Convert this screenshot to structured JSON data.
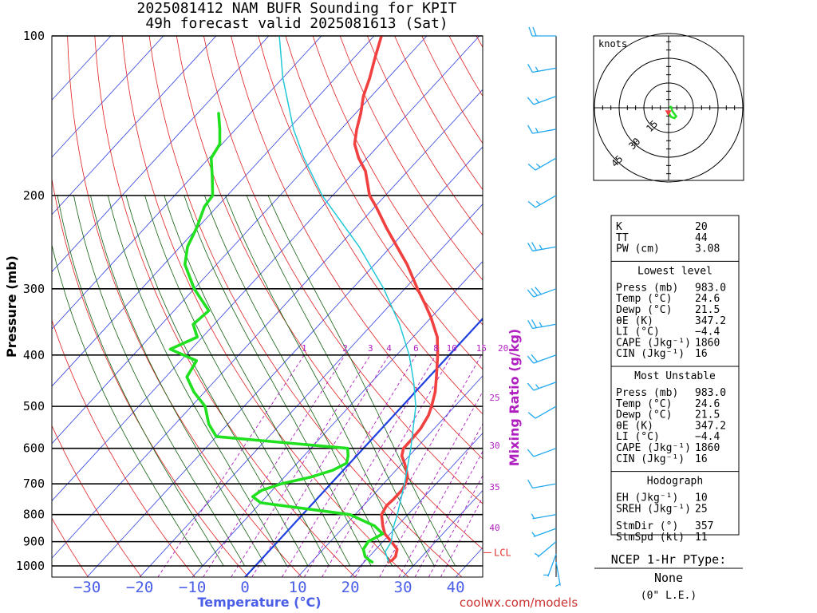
{
  "title": {
    "line1": "2025081412 NAM BUFR Sounding for KPIT",
    "line2": "49h forecast valid 2025081613 (Sat)"
  },
  "axes": {
    "ylabel": "Pressure (mb)",
    "xlabel": "Temperature (°C)",
    "mixing_label": "Mixing Ratio (g/kg)",
    "pressure_ticks": [
      "100",
      "200",
      "300",
      "400",
      "500",
      "600",
      "700",
      "800",
      "900",
      "1000"
    ],
    "temp_ticks": [
      "−30",
      "−20",
      "−10",
      "0",
      "10",
      "20",
      "30",
      "40"
    ],
    "mixing_ticks": [
      "1",
      "2",
      "3",
      "4",
      "6",
      "8",
      "10",
      "15",
      "20",
      "25",
      "30",
      "35",
      "40"
    ],
    "lcl_label": "LCL"
  },
  "chart_data": {
    "type": "line",
    "title": "2025081412 NAM BUFR Sounding for KPIT",
    "subtitle": "49h forecast valid 2025081613 (Sat)",
    "xlabel": "Temperature (°C)",
    "ylabel": "Pressure (mb)",
    "y_scale": "log",
    "ylim": [
      1000,
      100
    ],
    "xlim": [
      -40,
      40
    ],
    "skew": true,
    "series": [
      {
        "name": "Temperature",
        "color": "#f04040",
        "points": [
          [
            983,
            24.6
          ],
          [
            975,
            25.0
          ],
          [
            960,
            25.0
          ],
          [
            930,
            24.0
          ],
          [
            900,
            21.6
          ],
          [
            870,
            19.0
          ],
          [
            840,
            17.2
          ],
          [
            800,
            15.0
          ],
          [
            770,
            14.4
          ],
          [
            750,
            14.6
          ],
          [
            720,
            14.6
          ],
          [
            700,
            14.2
          ],
          [
            680,
            13.4
          ],
          [
            660,
            12.0
          ],
          [
            640,
            10.4
          ],
          [
            620,
            8.6
          ],
          [
            600,
            7.6
          ],
          [
            580,
            7.6
          ],
          [
            550,
            7.4
          ],
          [
            520,
            6.6
          ],
          [
            500,
            5.6
          ],
          [
            470,
            3.8
          ],
          [
            440,
            1.4
          ],
          [
            400,
            -2.2
          ],
          [
            370,
            -5.4
          ],
          [
            340,
            -10.0
          ],
          [
            320,
            -13.6
          ],
          [
            300,
            -17.6
          ],
          [
            270,
            -23.8
          ],
          [
            250,
            -28.8
          ],
          [
            230,
            -34.2
          ],
          [
            210,
            -39.8
          ],
          [
            200,
            -43.0
          ],
          [
            180,
            -48.0
          ],
          [
            170,
            -51.6
          ],
          [
            160,
            -54.8
          ],
          [
            150,
            -57.0
          ],
          [
            140,
            -59.0
          ],
          [
            130,
            -61.5
          ],
          [
            120,
            -63.5
          ],
          [
            110,
            -66.0
          ],
          [
            100,
            -68.6
          ]
        ]
      },
      {
        "name": "Dewpoint",
        "color": "#20e020",
        "points": [
          [
            983,
            21.5
          ],
          [
            975,
            20.6
          ],
          [
            960,
            19.2
          ],
          [
            930,
            17.6
          ],
          [
            900,
            17.2
          ],
          [
            870,
            18.6
          ],
          [
            840,
            15.6
          ],
          [
            800,
            9.0
          ],
          [
            760,
            -10.0
          ],
          [
            740,
            -12.6
          ],
          [
            720,
            -12.0
          ],
          [
            700,
            -9.4
          ],
          [
            680,
            -5.0
          ],
          [
            660,
            -2.0
          ],
          [
            640,
            -0.6
          ],
          [
            620,
            -1.6
          ],
          [
            600,
            -3.0
          ],
          [
            570,
            -30.0
          ],
          [
            540,
            -33.6
          ],
          [
            500,
            -37.4
          ],
          [
            470,
            -42.0
          ],
          [
            440,
            -46.0
          ],
          [
            410,
            -47.0
          ],
          [
            390,
            -54.0
          ],
          [
            370,
            -51.0
          ],
          [
            350,
            -54.0
          ],
          [
            330,
            -53.4
          ],
          [
            300,
            -60.0
          ],
          [
            270,
            -66.0
          ],
          [
            250,
            -68.6
          ],
          [
            230,
            -70.2
          ],
          [
            210,
            -72.4
          ],
          [
            200,
            -72.8
          ],
          [
            185,
            -76.0
          ],
          [
            170,
            -79.6
          ],
          [
            160,
            -80.4
          ],
          [
            150,
            -83.0
          ],
          [
            140,
            -86.0
          ]
        ]
      },
      {
        "name": "Parcel",
        "color": "#20c8d8",
        "points": [
          [
            983,
            24.6
          ],
          [
            940,
            22.2
          ],
          [
            900,
            21.6
          ],
          [
            850,
            19.6
          ],
          [
            800,
            18.0
          ],
          [
            700,
            14.0
          ],
          [
            600,
            9.0
          ],
          [
            500,
            2.6
          ],
          [
            450,
            -2.0
          ],
          [
            400,
            -7.6
          ],
          [
            350,
            -14.8
          ],
          [
            300,
            -24.0
          ],
          [
            250,
            -36.0
          ],
          [
            200,
            -52.0
          ],
          [
            170,
            -62.0
          ],
          [
            150,
            -69.0
          ],
          [
            120,
            -80.0
          ],
          [
            100,
            -88.0
          ]
        ]
      }
    ],
    "lcl_pressure_mb": 944,
    "wind_barbs_knots": [
      {
        "p": 983,
        "dir": 170,
        "spd": 5
      },
      {
        "p": 950,
        "dir": 200,
        "spd": 5
      },
      {
        "p": 900,
        "dir": 230,
        "spd": 5
      },
      {
        "p": 850,
        "dir": 250,
        "spd": 5
      },
      {
        "p": 800,
        "dir": 260,
        "spd": 5
      },
      {
        "p": 700,
        "dir": 260,
        "spd": 10
      },
      {
        "p": 600,
        "dir": 250,
        "spd": 10
      },
      {
        "p": 500,
        "dir": 240,
        "spd": 10
      },
      {
        "p": 450,
        "dir": 250,
        "spd": 15
      },
      {
        "p": 400,
        "dir": 250,
        "spd": 20
      },
      {
        "p": 350,
        "dir": 260,
        "spd": 25
      },
      {
        "p": 300,
        "dir": 250,
        "spd": 30
      },
      {
        "p": 250,
        "dir": 260,
        "spd": 25
      },
      {
        "p": 200,
        "dir": 240,
        "spd": 15
      },
      {
        "p": 170,
        "dir": 240,
        "spd": 15
      },
      {
        "p": 150,
        "dir": 260,
        "spd": 15
      },
      {
        "p": 130,
        "dir": 250,
        "spd": 15
      },
      {
        "p": 115,
        "dir": 260,
        "spd": 15
      },
      {
        "p": 100,
        "dir": 270,
        "spd": 20
      }
    ],
    "hodograph": {
      "label": "knots",
      "rings": [
        "15",
        "30",
        "45"
      ],
      "points": [
        [
          0.3,
          -3.5
        ],
        [
          1.6,
          -5.6
        ],
        [
          3.6,
          -6.3
        ],
        [
          4.6,
          -5.2
        ],
        [
          2.2,
          -1.9
        ],
        [
          1.6,
          0.4
        ],
        [
          0.6,
          0.5
        ],
        [
          1.7,
          0.7
        ]
      ],
      "storm_motion": [
        -0.2,
        -4.0
      ]
    }
  },
  "indices": {
    "general": [
      {
        "label": "K",
        "value": "20"
      },
      {
        "label": "TT",
        "value": "44"
      },
      {
        "label": "PW (cm)",
        "value": "3.08"
      }
    ],
    "lowest_level_title": "Lowest level",
    "lowest_level": [
      {
        "label": "Press (mb)",
        "value": "983.0"
      },
      {
        "label": "Temp (°C)",
        "value": "24.6"
      },
      {
        "label": "Dewp (°C)",
        "value": "21.5"
      },
      {
        "label": "θE (K)",
        "value": "347.2"
      },
      {
        "label": "LI (°C)",
        "value": "−4.4"
      },
      {
        "label": "CAPE (Jkg⁻¹)",
        "value": "1860"
      },
      {
        "label": "CIN (Jkg⁻¹)",
        "value": "16"
      }
    ],
    "most_unstable_title": "Most Unstable",
    "most_unstable": [
      {
        "label": "Press (mb)",
        "value": "983.0"
      },
      {
        "label": "Temp (°C)",
        "value": "24.6"
      },
      {
        "label": "Dewp (°C)",
        "value": "21.5"
      },
      {
        "label": "θE (K)",
        "value": "347.2"
      },
      {
        "label": "LI (°C)",
        "value": "−4.4"
      },
      {
        "label": "CAPE (Jkg⁻¹)",
        "value": "1860"
      },
      {
        "label": "CIN (Jkg⁻¹)",
        "value": "16"
      }
    ],
    "hodograph_title": "Hodograph",
    "hodograph_vals": [
      {
        "label": "EH (Jkg⁻¹)",
        "value": "10"
      },
      {
        "label": "SREH (Jkg⁻¹)",
        "value": "25"
      },
      {
        "label": "StmDir (°)",
        "value": "357"
      },
      {
        "label": "StmSpd (kt)",
        "value": "11"
      }
    ]
  },
  "ptype": {
    "title": "NCEP 1-Hr PType:",
    "value": "None",
    "note": "(0\" L.E.)"
  },
  "credit": "coolwx.com/models",
  "colors": {
    "temperature": "#f04040",
    "dewpoint": "#20e020",
    "parcel": "#20c8d8",
    "isotherm": "#3040e0",
    "dry_adiabat": "#e02020",
    "moist_adiabat": "#106010",
    "mixing": "#b020c0",
    "freezing": "#2040e0",
    "barbs": "#20a8f0"
  }
}
